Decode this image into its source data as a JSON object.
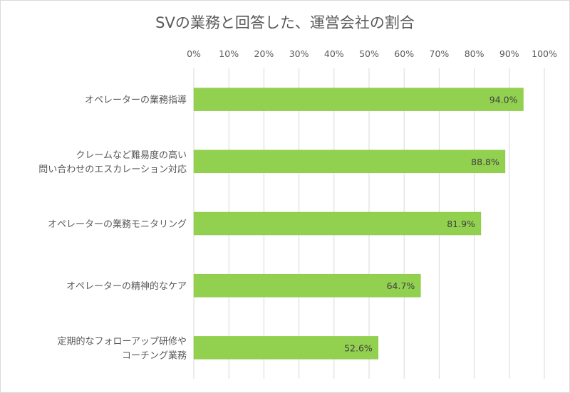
{
  "chart_data": {
    "type": "bar",
    "orientation": "horizontal",
    "title": "SVの業務と回答した、運営会社の割合",
    "xlim": [
      0,
      100
    ],
    "x_ticks": [
      "0%",
      "10%",
      "20%",
      "30%",
      "40%",
      "50%",
      "60%",
      "70%",
      "80%",
      "90%",
      "100%"
    ],
    "categories": [
      [
        "オペレーターの業務指導"
      ],
      [
        "クレームなど難易度の高い",
        "問い合わせのエスカレーション対応"
      ],
      [
        "オペレーターの業務モニタリング"
      ],
      [
        "オペレーターの精神的なケア"
      ],
      [
        "定期的なフォローアップ研修や",
        "コーチング業務"
      ]
    ],
    "values": [
      94.0,
      88.8,
      81.9,
      64.7,
      52.6
    ],
    "data_labels": [
      "94.0%",
      "88.8%",
      "81.9%",
      "64.7%",
      "52.6%"
    ],
    "bar_color": "#92d050",
    "grid": true,
    "axis_position": "top"
  }
}
